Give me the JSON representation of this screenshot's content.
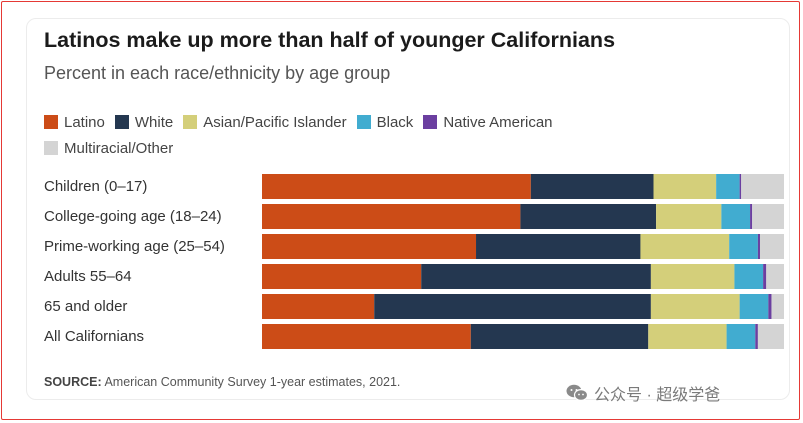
{
  "chart_data": {
    "type": "bar",
    "orientation": "horizontal",
    "stacked": true,
    "title": "Latinos make up more than half of younger Californians",
    "subtitle": "Percent in each race/ethnicity by age group",
    "categories": [
      "Children (0–17)",
      "College-going age (18–24)",
      "Prime-working age (25–54)",
      "Adults 55–64",
      "65 and older",
      "All Californians"
    ],
    "series": [
      {
        "name": "Latino",
        "color": "#cc4c17",
        "values": [
          51.5,
          49.5,
          41,
          30.5,
          21.5,
          40
        ]
      },
      {
        "name": "White",
        "color": "#243750",
        "values": [
          23.5,
          26,
          31.5,
          44,
          53,
          34
        ]
      },
      {
        "name": "Asian/Pacific Islander",
        "color": "#d4cf7a",
        "values": [
          12,
          12.5,
          17,
          16,
          17,
          15
        ]
      },
      {
        "name": "Black",
        "color": "#41acd0",
        "values": [
          4.5,
          5.5,
          5.5,
          5.5,
          5.5,
          5.5
        ]
      },
      {
        "name": "Native American",
        "color": "#6b3fa0",
        "values": [
          0.3,
          0.4,
          0.4,
          0.6,
          0.6,
          0.5
        ]
      },
      {
        "name": "Multiracial/Other",
        "color": "#d4d4d4",
        "values": [
          8.2,
          6.1,
          4.6,
          3.4,
          2.4,
          5.0
        ]
      }
    ],
    "xlim": [
      0,
      100
    ],
    "xlabel": "",
    "ylabel": "",
    "legend": "top"
  },
  "source": {
    "label": "SOURCE:",
    "text": "American Community Survey 1-year estimates, 2021."
  },
  "watermark": {
    "text": "公众号 · 超级学爸"
  }
}
